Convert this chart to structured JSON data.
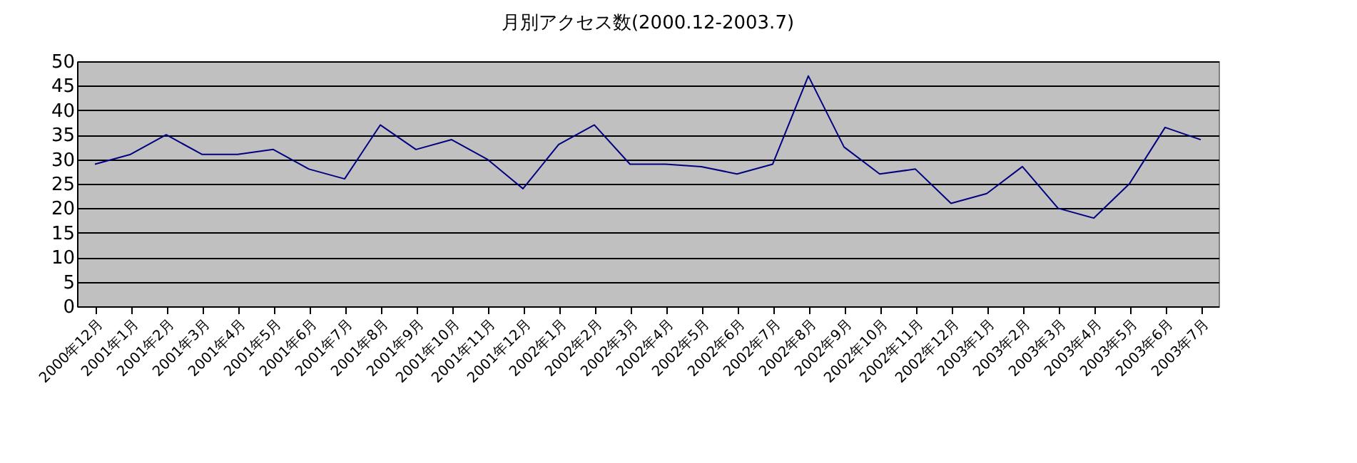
{
  "chart_data": {
    "type": "line",
    "title": "月別アクセス数(2000.12-2003.7)",
    "categories": [
      "2000年12月",
      "2001年1月",
      "2001年2月",
      "2001年3月",
      "2001年4月",
      "2001年5月",
      "2001年6月",
      "2001年7月",
      "2001年8月",
      "2001年9月",
      "2001年10月",
      "2001年11月",
      "2001年12月",
      "2002年1月",
      "2002年2月",
      "2002年3月",
      "2002年4月",
      "2002年5月",
      "2002年6月",
      "2002年7月",
      "2002年8月",
      "2002年9月",
      "2002年10月",
      "2002年11月",
      "2002年12月",
      "2003年1月",
      "2003年2月",
      "2003年3月",
      "2003年4月",
      "2003年5月",
      "2003年6月",
      "2003年7月"
    ],
    "series": [
      {
        "color": "#000080",
        "values": [
          29,
          31,
          35,
          31,
          31,
          32,
          28,
          26,
          37,
          32,
          34,
          30,
          24,
          33,
          37,
          29,
          29,
          28.5,
          27,
          29,
          47,
          32.5,
          27,
          28,
          21,
          23,
          28.5,
          20,
          18,
          25,
          36.5,
          34
        ]
      }
    ],
    "ylim": [
      0,
      50
    ],
    "yticks": [
      0,
      5,
      10,
      15,
      20,
      25,
      30,
      35,
      40,
      45,
      50
    ],
    "grid": "y",
    "marker": "none",
    "line_style": "solid"
  }
}
